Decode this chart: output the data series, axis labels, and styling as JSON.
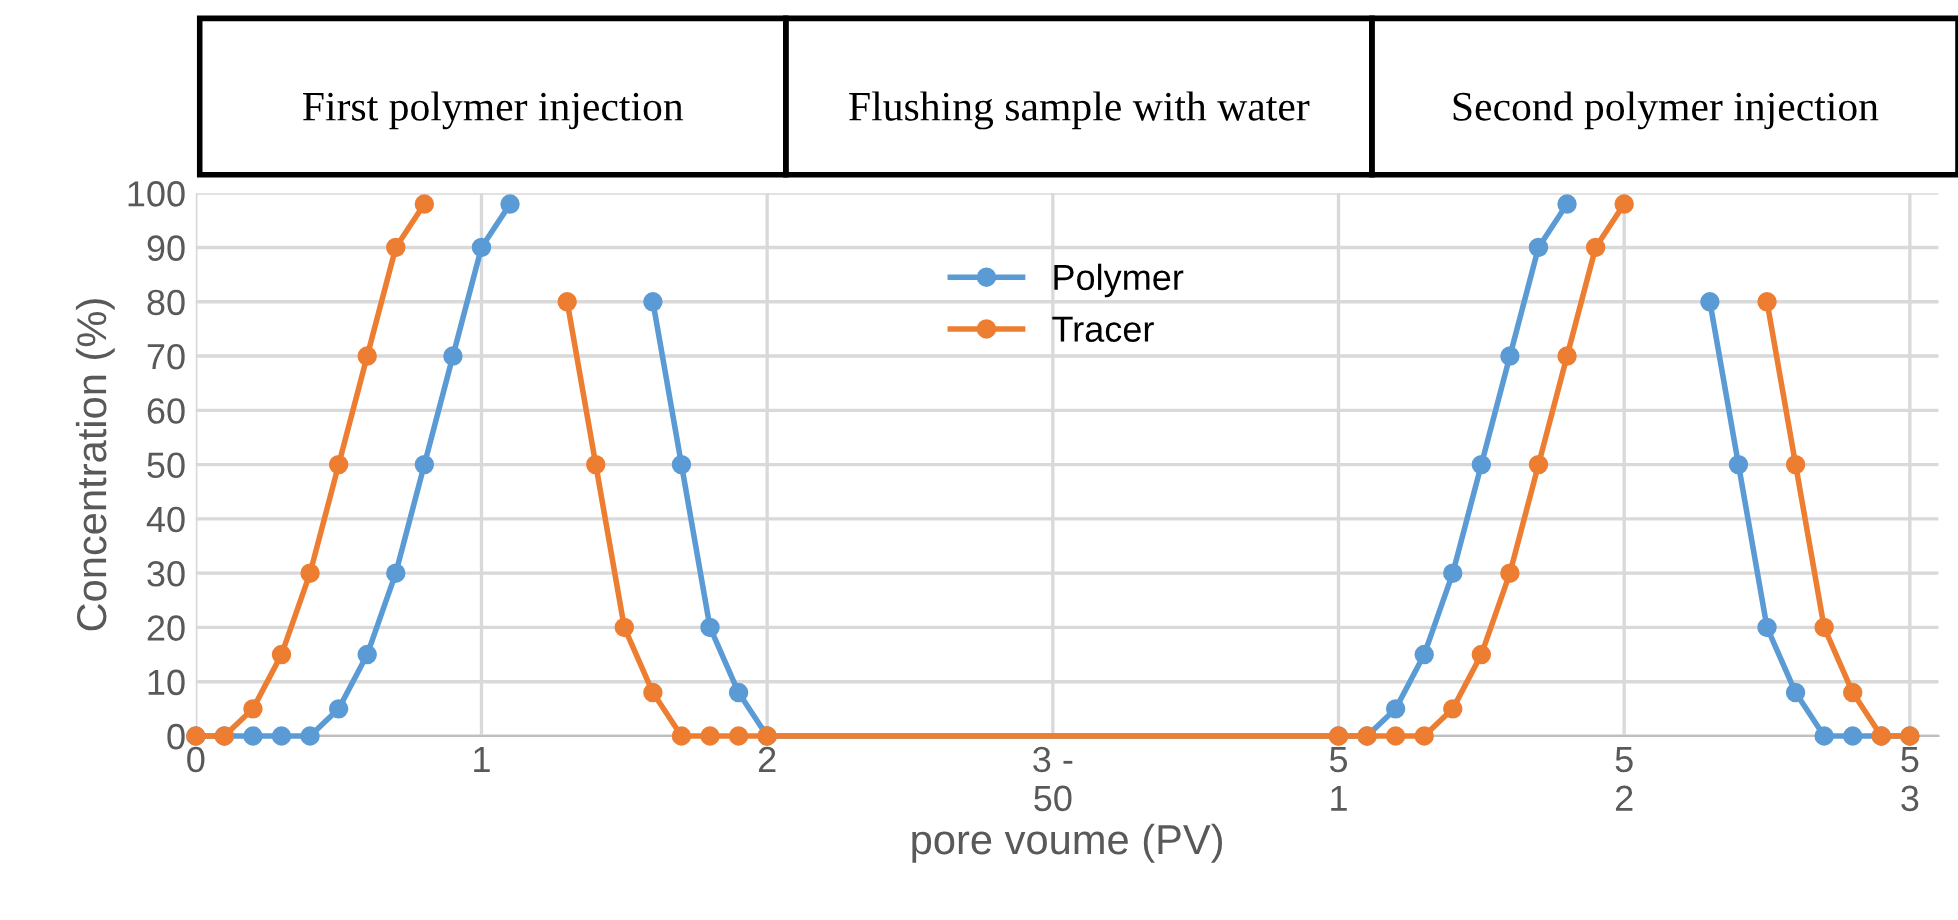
{
  "chart_data": {
    "type": "line",
    "xlabel": "pore voume (PV)",
    "ylabel": "Concentration (%)",
    "annotations": [
      "First polymer injection",
      "Flushing sample with water",
      "Second polymer injection"
    ],
    "xlim": [
      0,
      6.1
    ],
    "ylim": [
      0,
      100
    ],
    "xticks": [
      0,
      1,
      2,
      {
        "value": 3,
        "label": "3 -\n50"
      },
      {
        "value": 4,
        "label": "5\n1"
      },
      {
        "value": 5,
        "label": "5\n2"
      },
      {
        "value": 6,
        "label": "5\n3"
      }
    ],
    "yticks": [
      0,
      10,
      20,
      30,
      40,
      50,
      60,
      70,
      80,
      90,
      100
    ],
    "grid": true,
    "legend": "top",
    "marker": "circle",
    "line_style": "solid",
    "series": [
      {
        "name": "Polymer",
        "color": "#5b9bd5",
        "x": [
          0,
          0.1,
          0.2,
          0.3,
          0.4,
          0.5,
          0.6,
          0.7,
          0.8,
          0.9,
          1.0,
          1.1,
          1.2,
          1.3,
          1.4,
          1.5,
          1.6,
          1.7,
          1.8,
          1.9,
          2.0,
          4.0,
          4.1,
          4.2,
          4.3,
          4.4,
          4.5,
          4.6,
          4.7,
          4.8,
          4.9,
          5.0,
          5.1,
          5.2,
          5.3,
          5.4,
          5.5,
          5.6,
          5.7,
          5.8,
          5.9,
          6.0
        ],
        "values": [
          0,
          0,
          0,
          0,
          0,
          5,
          15,
          30,
          50,
          70,
          90,
          98,
          null,
          null,
          null,
          null,
          80,
          50,
          20,
          8,
          0,
          0,
          0,
          5,
          15,
          30,
          50,
          70,
          90,
          98,
          null,
          null,
          null,
          null,
          80,
          50,
          20,
          8,
          0,
          0,
          0,
          0
        ]
      },
      {
        "name": "Tracer",
        "color": "#ed7d31",
        "x": [
          0,
          0.1,
          0.2,
          0.3,
          0.4,
          0.5,
          0.6,
          0.7,
          0.8,
          0.9,
          1.0,
          1.1,
          1.2,
          1.3,
          1.4,
          1.5,
          1.6,
          1.7,
          1.8,
          1.9,
          2.0,
          4.0,
          4.1,
          4.2,
          4.3,
          4.4,
          4.5,
          4.6,
          4.7,
          4.8,
          4.9,
          5.0,
          5.1,
          5.2,
          5.3,
          5.4,
          5.5,
          5.6,
          5.7,
          5.8,
          5.9,
          6.0
        ],
        "values": [
          0,
          0,
          5,
          15,
          30,
          50,
          70,
          90,
          98,
          null,
          null,
          null,
          null,
          80,
          50,
          20,
          8,
          0,
          0,
          0,
          0,
          0,
          0,
          0,
          0,
          5,
          15,
          30,
          50,
          70,
          90,
          98,
          null,
          null,
          null,
          null,
          80,
          50,
          20,
          8,
          0,
          0
        ]
      }
    ]
  }
}
